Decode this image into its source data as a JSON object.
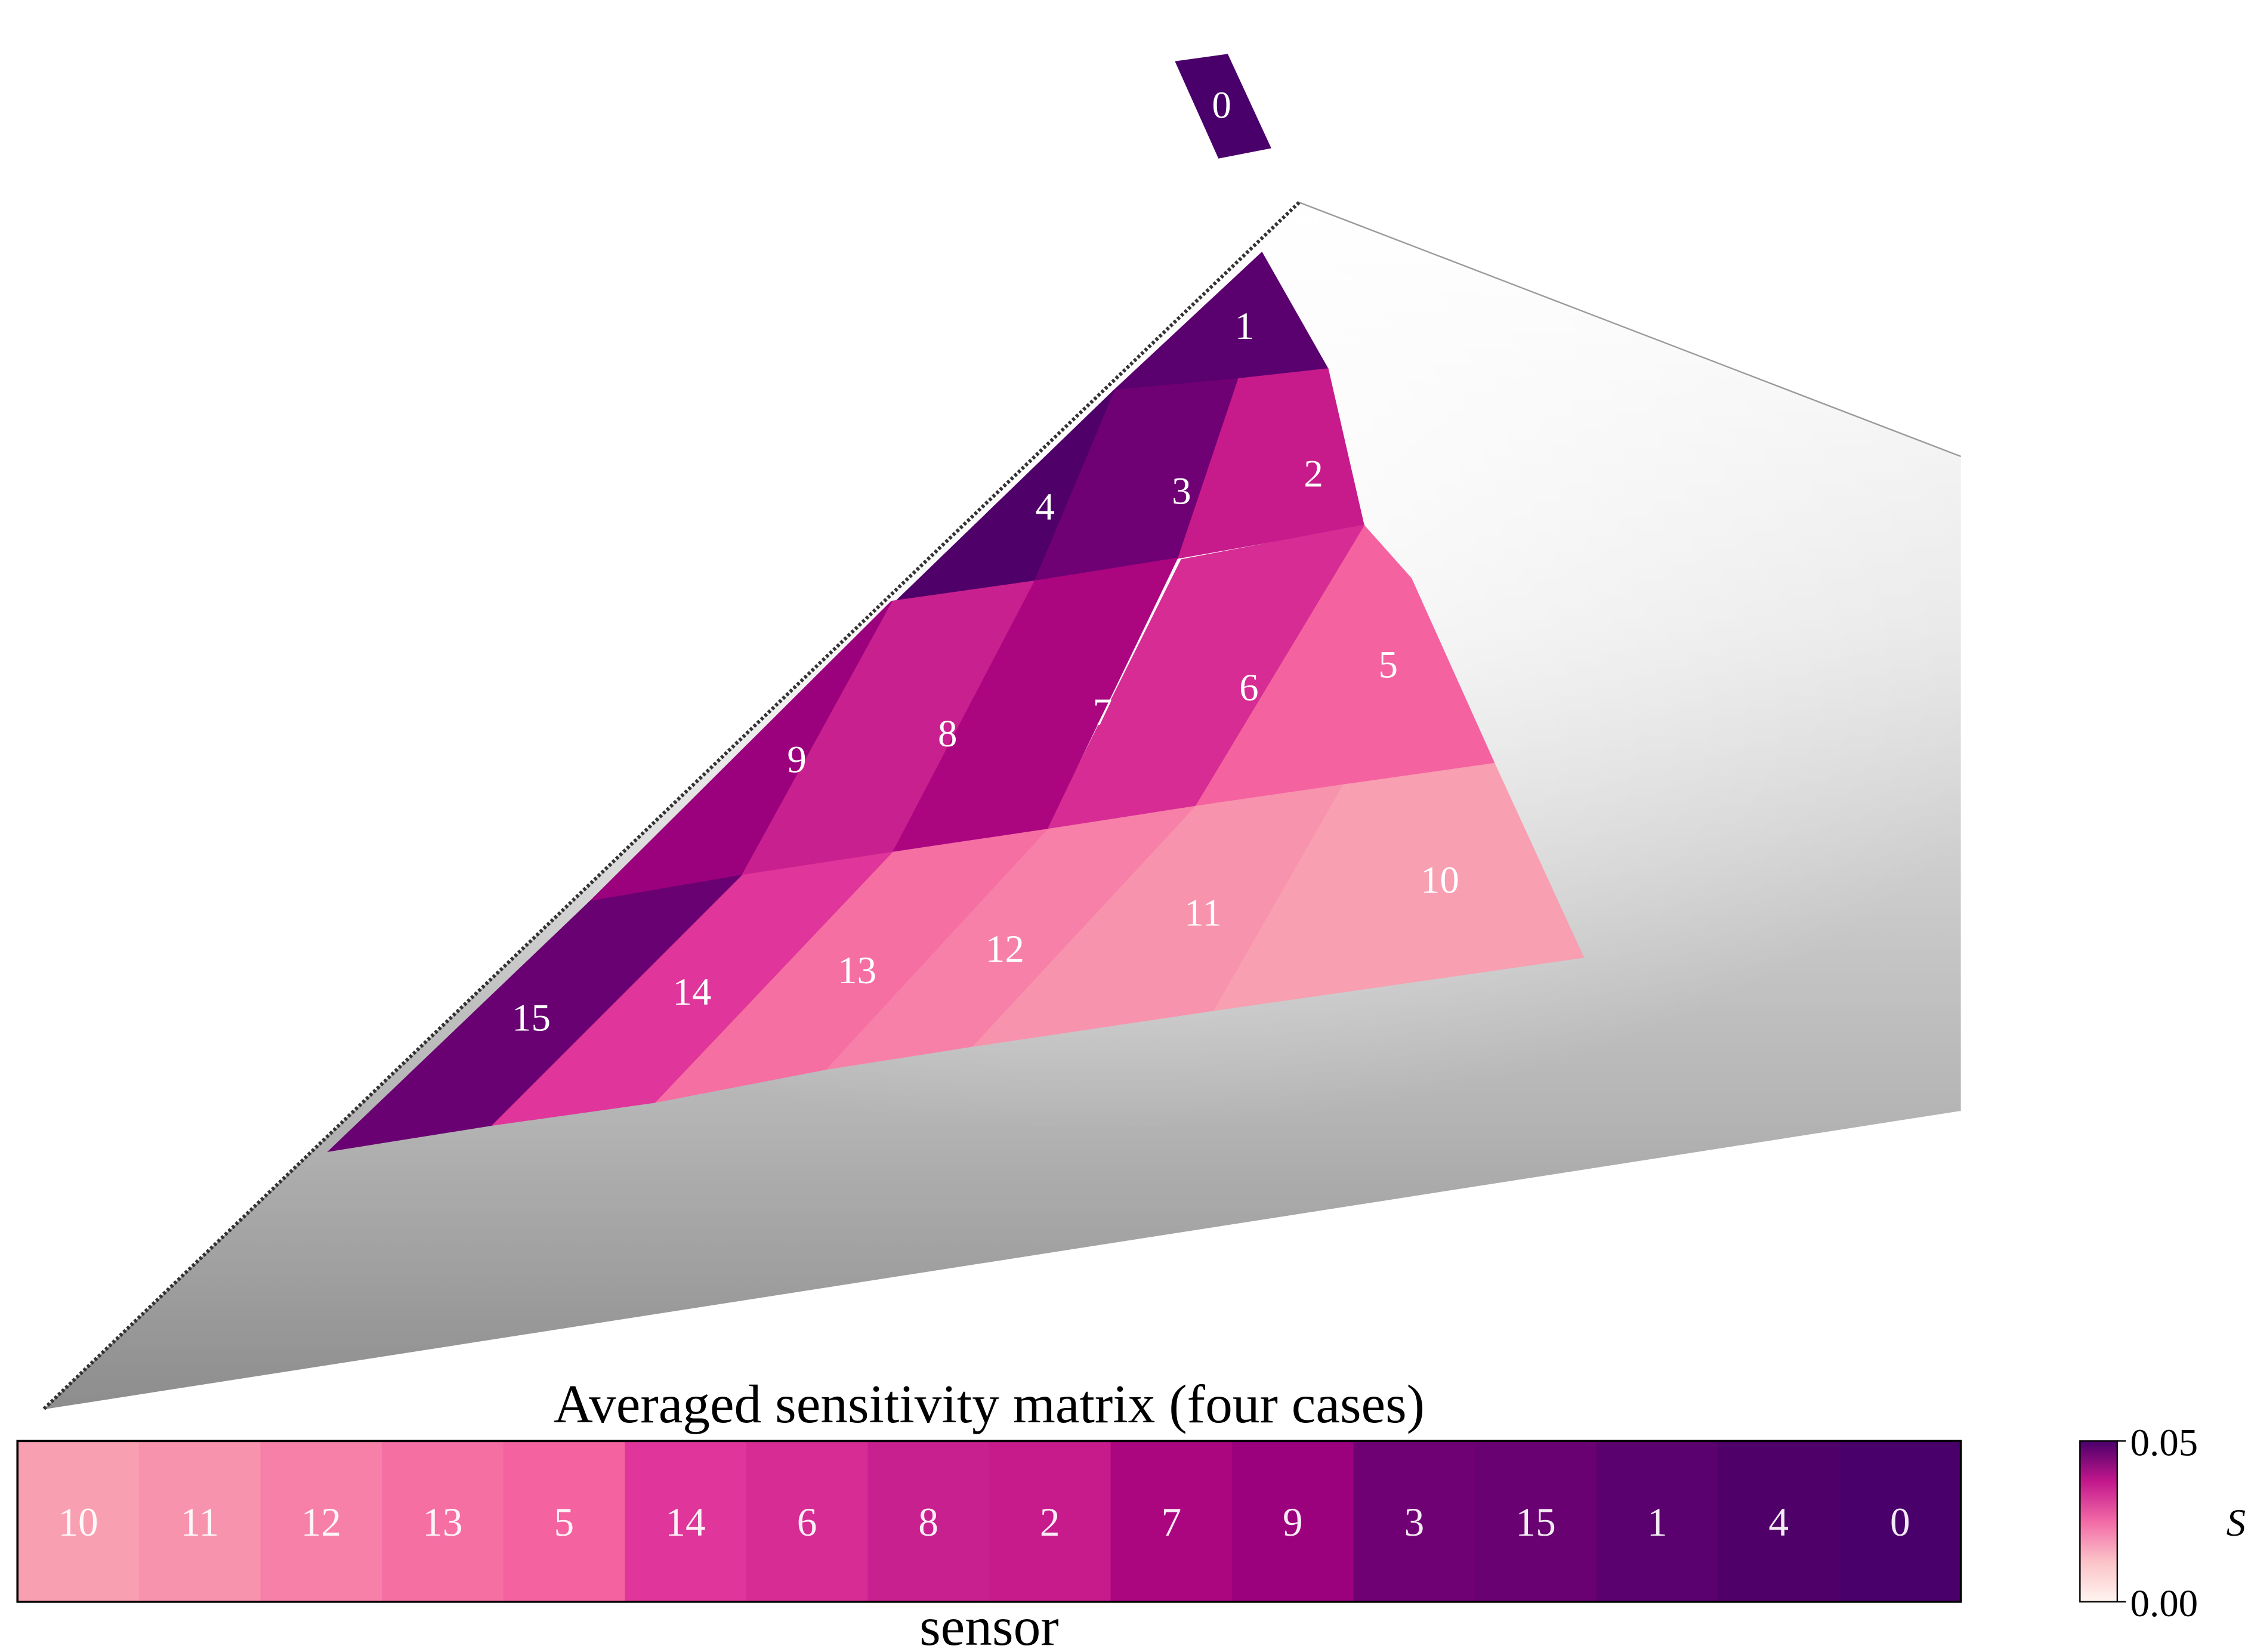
{
  "chart_data": {
    "type": "heatmap",
    "title": "Averaged sensitivity matrix (four cases)",
    "xlabel": "sensor",
    "colorbar": {
      "label": "S",
      "range": [
        0.0,
        0.05
      ],
      "tick_labels": [
        "0.05",
        "0.00"
      ],
      "colors": {
        "low": "#fff5f0",
        "mid": "#e0359a",
        "high": "#4a006a"
      }
    },
    "sorted_sensors": [
      {
        "label": "10",
        "color": "#f89fb1"
      },
      {
        "label": "11",
        "color": "#f893ae"
      },
      {
        "label": "12",
        "color": "#f780a8"
      },
      {
        "label": "13",
        "color": "#f56fa3"
      },
      {
        "label": "5",
        "color": "#f462a0"
      },
      {
        "label": "14",
        "color": "#e0359a"
      },
      {
        "label": "6",
        "color": "#d62c94"
      },
      {
        "label": "8",
        "color": "#c9208f"
      },
      {
        "label": "2",
        "color": "#c71b8c"
      },
      {
        "label": "7",
        "color": "#ab0680"
      },
      {
        "label": "9",
        "color": "#9c017d"
      },
      {
        "label": "3",
        "color": "#700174"
      },
      {
        "label": "15",
        "color": "#6a0172"
      },
      {
        "label": "1",
        "color": "#5b006f"
      },
      {
        "label": "4",
        "color": "#500069"
      },
      {
        "label": "0",
        "color": "#4a006a"
      }
    ]
  }
}
